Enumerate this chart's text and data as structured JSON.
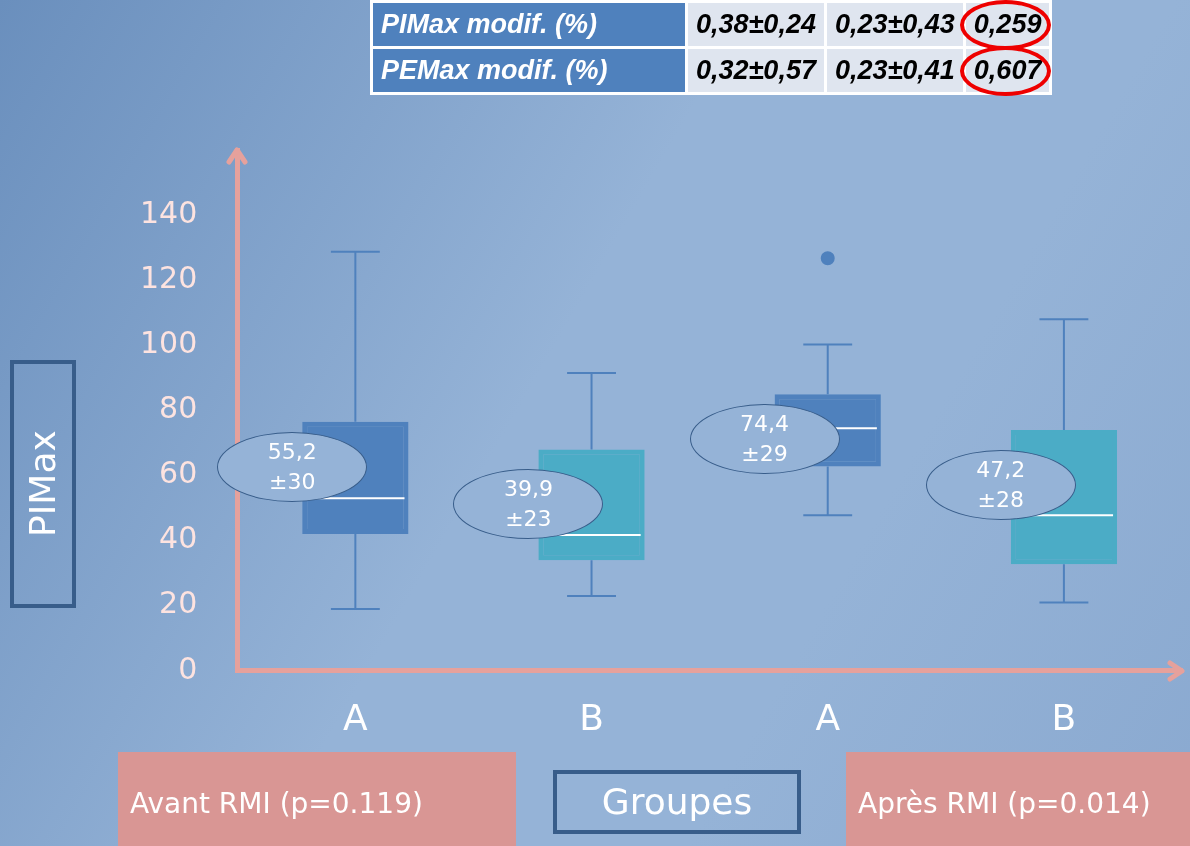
{
  "chart_data": {
    "type": "box",
    "ylabel": "PIMax",
    "xlabel": "Groupes",
    "categories": [
      "A",
      "B",
      "A",
      "B"
    ],
    "colors": [
      "#4f81bd",
      "#4bacc6",
      "#4f81bd",
      "#4bacc6"
    ],
    "boxes": [
      {
        "low": 19,
        "q1": 42,
        "median": 53,
        "q3": 76.5,
        "high": 128.75
      },
      {
        "low": 23,
        "q1": 34,
        "median": 41.75,
        "q3": 68,
        "high": 91.5
      },
      {
        "low": 47.75,
        "q1": 62.75,
        "median": 74.5,
        "q3": 85,
        "high": 100.25,
        "outliers": [
          126.75
        ]
      },
      {
        "low": 21,
        "q1": 32.75,
        "median": 47.75,
        "q3": 74,
        "high": 108
      }
    ],
    "ylim": [
      0,
      160
    ],
    "yticks": [
      0,
      20,
      40,
      60,
      80,
      100,
      120,
      140
    ],
    "grid": false,
    "legend": false,
    "annotations": [
      "55,2 ±30",
      "39,9 ±23",
      "74,4 ±29",
      "47,2 ±28",
      "PIMax modif. (%)",
      "0,38±0,24",
      "0,23±0,43",
      "0,259",
      "PEMax modif. (%)",
      "0,32±0,57",
      "0,23±0,41",
      "0,607",
      "Avant RMI (p=0.119)",
      "Après RMI (p=0.014)"
    ]
  }
}
